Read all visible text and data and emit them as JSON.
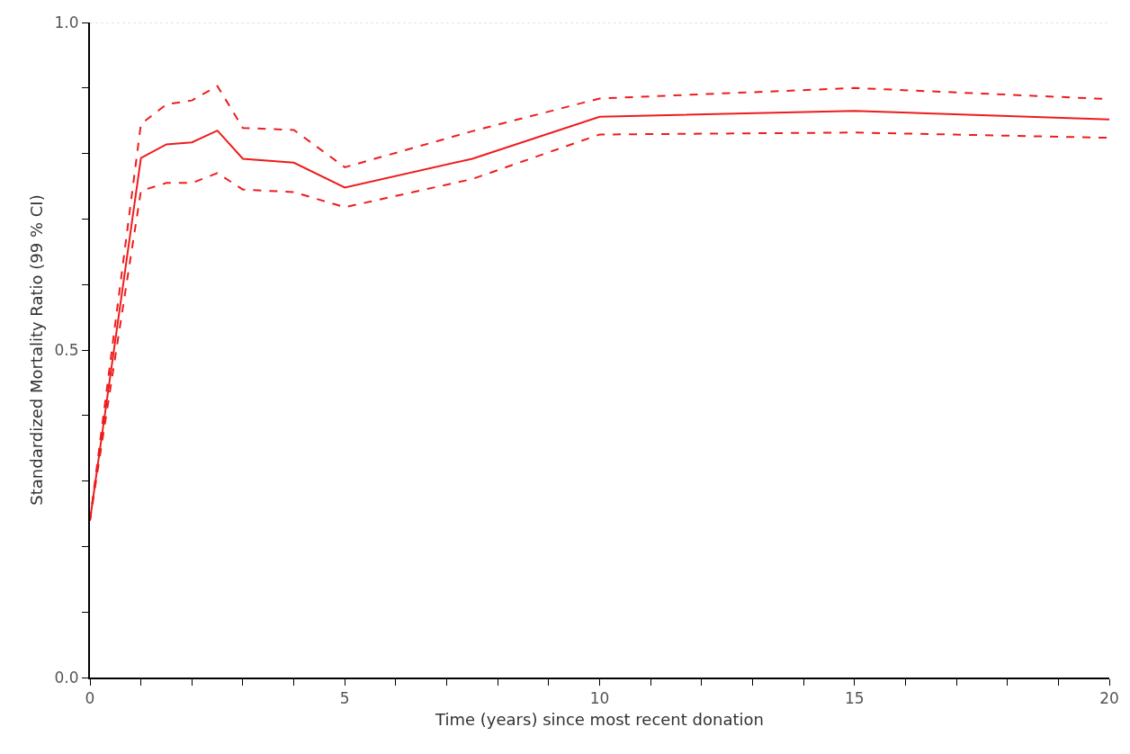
{
  "chart_data": {
    "type": "line",
    "xlabel": "Time (years) since most recent donation",
    "ylabel": "Standardized Mortality Ratio (99 % CI)",
    "x": [
      0,
      1,
      1.5,
      2,
      2.5,
      3,
      4,
      5,
      7.5,
      10,
      15,
      20
    ],
    "series": [
      {
        "color": "#ee1c1c",
        "line_style": "dashed",
        "values": [
          0.24,
          0.845,
          0.875,
          0.881,
          0.903,
          0.839,
          0.836,
          0.779,
          0.834,
          0.884,
          0.9,
          0.883
        ]
      },
      {
        "color": "#ee1c1c",
        "line_style": "solid",
        "values": [
          0.24,
          0.793,
          0.814,
          0.817,
          0.835,
          0.792,
          0.786,
          0.748,
          0.792,
          0.856,
          0.865,
          0.852
        ]
      },
      {
        "color": "#ee1c1c",
        "line_style": "dashed",
        "values": [
          0.24,
          0.743,
          0.755,
          0.755,
          0.77,
          0.745,
          0.741,
          0.718,
          0.761,
          0.829,
          0.832,
          0.824
        ]
      }
    ],
    "xlim": [
      0,
      20
    ],
    "xticks": [
      0,
      {
        "value": 1,
        "label": null
      },
      {
        "value": 2,
        "label": null
      },
      {
        "value": 3,
        "label": null
      },
      {
        "value": 4,
        "label": null
      },
      5,
      {
        "value": 6,
        "label": null
      },
      {
        "value": 7,
        "label": null
      },
      {
        "value": 8,
        "label": null
      },
      {
        "value": 9,
        "label": null
      },
      10,
      {
        "value": 11,
        "label": null
      },
      {
        "value": 12,
        "label": null
      },
      {
        "value": 13,
        "label": null
      },
      {
        "value": 14,
        "label": null
      },
      15,
      {
        "value": 16,
        "label": null
      },
      {
        "value": 17,
        "label": null
      },
      {
        "value": 18,
        "label": null
      },
      {
        "value": 19,
        "label": null
      },
      20
    ],
    "ylim": [
      0,
      1
    ],
    "yticks": [
      {
        "value": 0,
        "label": "0.0"
      },
      {
        "value": 0.1,
        "label": null
      },
      {
        "value": 0.2,
        "label": null
      },
      {
        "value": 0.3,
        "label": null
      },
      {
        "value": 0.4,
        "label": null
      },
      0.5,
      {
        "value": 0.6,
        "label": null
      },
      {
        "value": 0.7,
        "label": null
      },
      {
        "value": 0.8,
        "label": null
      },
      {
        "value": 0.9,
        "label": null
      },
      {
        "value": 1,
        "label": "1.0"
      }
    ],
    "ref_lines": [
      {
        "axis": "y",
        "value": 1,
        "label": null,
        "color": "#c8c8c8",
        "line_style": "dotted"
      }
    ],
    "grid": false,
    "marker": "none"
  }
}
